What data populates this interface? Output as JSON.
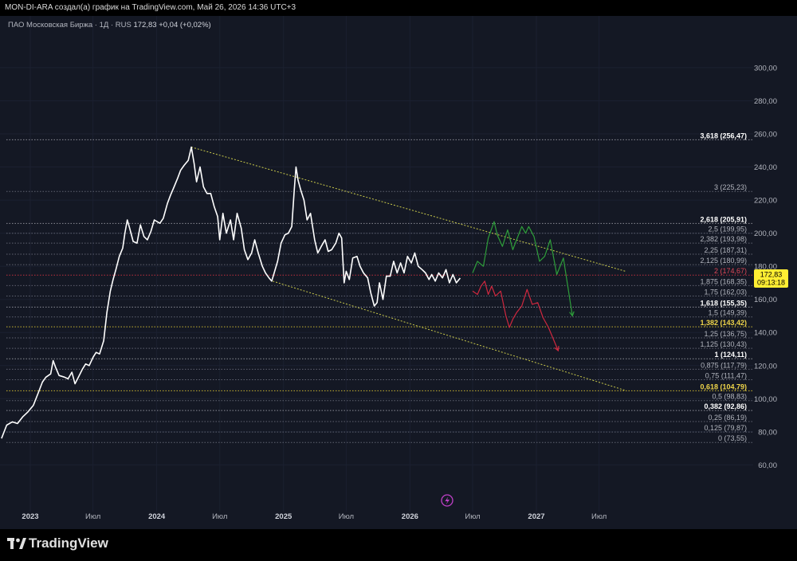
{
  "header": {
    "attribution": "MON-DI-ARA создал(а) график на TradingView.com, Май 26, 2026 14:36 UTC+3",
    "symbol": "ПАО Московская Биржа · 1Д · RUS",
    "last_price": "172,83",
    "change": "+0,04 (+0,02%)"
  },
  "footer": {
    "brand": "TradingView"
  },
  "price_tag": {
    "price": "172,83",
    "countdown": "09:13:18",
    "value": 172.83
  },
  "chart_data": {
    "type": "line",
    "instrument": "ПАО Московская Биржа",
    "interval": "1Д",
    "ylim": [
      52,
      312
    ],
    "y_ticks": [
      {
        "v": 300,
        "label": "300,00"
      },
      {
        "v": 280,
        "label": "280,00"
      },
      {
        "v": 260,
        "label": "260,00"
      },
      {
        "v": 240,
        "label": "240,00"
      },
      {
        "v": 220,
        "label": "220,00"
      },
      {
        "v": 200,
        "label": "200,00"
      },
      {
        "v": 180,
        "label": "180,00"
      },
      {
        "v": 160,
        "label": "160,00"
      },
      {
        "v": 140,
        "label": "140,00"
      },
      {
        "v": 120,
        "label": "120,00"
      },
      {
        "v": 100,
        "label": "100,00"
      },
      {
        "v": 80,
        "label": "80,00"
      },
      {
        "v": 60,
        "label": "60,00"
      }
    ],
    "x_ticks": [
      {
        "t": "2023-01-01",
        "label": "2023",
        "bold": true
      },
      {
        "t": "2023-07-01",
        "label": "Июл",
        "bold": false
      },
      {
        "t": "2024-01-01",
        "label": "2024",
        "bold": true
      },
      {
        "t": "2024-07-01",
        "label": "Июл",
        "bold": false
      },
      {
        "t": "2025-01-01",
        "label": "2025",
        "bold": true
      },
      {
        "t": "2025-07-01",
        "label": "Июл",
        "bold": false
      },
      {
        "t": "2026-01-01",
        "label": "2026",
        "bold": true
      },
      {
        "t": "2026-07-01",
        "label": "Июл",
        "bold": false
      },
      {
        "t": "2027-01-01",
        "label": "2027",
        "bold": true
      },
      {
        "t": "2027-07-01",
        "label": "Июл",
        "bold": false
      }
    ],
    "series": [
      {
        "role": "price",
        "color": "#ffffff",
        "points": [
          [
            "2022-10-10",
            76
          ],
          [
            "2022-10-25",
            84
          ],
          [
            "2022-11-10",
            86
          ],
          [
            "2022-11-25",
            85
          ],
          [
            "2022-12-10",
            89
          ],
          [
            "2022-12-25",
            92
          ],
          [
            "2023-01-10",
            96
          ],
          [
            "2023-01-25",
            104
          ],
          [
            "2023-02-05",
            110
          ],
          [
            "2023-02-15",
            113
          ],
          [
            "2023-03-01",
            115
          ],
          [
            "2023-03-08",
            123
          ],
          [
            "2023-03-15",
            119
          ],
          [
            "2023-03-25",
            114
          ],
          [
            "2023-04-10",
            113
          ],
          [
            "2023-04-20",
            112
          ],
          [
            "2023-05-01",
            116
          ],
          [
            "2023-05-10",
            109
          ],
          [
            "2023-05-20",
            113
          ],
          [
            "2023-06-01",
            118
          ],
          [
            "2023-06-10",
            121
          ],
          [
            "2023-06-20",
            120
          ],
          [
            "2023-07-01",
            125
          ],
          [
            "2023-07-10",
            128
          ],
          [
            "2023-07-20",
            127
          ],
          [
            "2023-08-01",
            135
          ],
          [
            "2023-08-10",
            152
          ],
          [
            "2023-08-20",
            165
          ],
          [
            "2023-08-28",
            172
          ],
          [
            "2023-09-05",
            178
          ],
          [
            "2023-09-15",
            186
          ],
          [
            "2023-09-25",
            191
          ],
          [
            "2023-10-01",
            200
          ],
          [
            "2023-10-08",
            208
          ],
          [
            "2023-10-15",
            203
          ],
          [
            "2023-10-25",
            195
          ],
          [
            "2023-11-05",
            194
          ],
          [
            "2023-11-15",
            205
          ],
          [
            "2023-11-25",
            198
          ],
          [
            "2023-12-05",
            196
          ],
          [
            "2023-12-15",
            201
          ],
          [
            "2023-12-25",
            208
          ],
          [
            "2024-01-10",
            206
          ],
          [
            "2024-01-20",
            209
          ],
          [
            "2024-02-01",
            218
          ],
          [
            "2024-02-10",
            223
          ],
          [
            "2024-02-20",
            228
          ],
          [
            "2024-03-01",
            233
          ],
          [
            "2024-03-10",
            238
          ],
          [
            "2024-03-20",
            241
          ],
          [
            "2024-04-01",
            244
          ],
          [
            "2024-04-10",
            252
          ],
          [
            "2024-04-18",
            242
          ],
          [
            "2024-04-25",
            231
          ],
          [
            "2024-05-05",
            240
          ],
          [
            "2024-05-15",
            228
          ],
          [
            "2024-05-25",
            224
          ],
          [
            "2024-06-05",
            224
          ],
          [
            "2024-06-15",
            216
          ],
          [
            "2024-06-25",
            210
          ],
          [
            "2024-07-01",
            196
          ],
          [
            "2024-07-10",
            212
          ],
          [
            "2024-07-20",
            200
          ],
          [
            "2024-08-01",
            208
          ],
          [
            "2024-08-10",
            196
          ],
          [
            "2024-08-20",
            212
          ],
          [
            "2024-09-01",
            203
          ],
          [
            "2024-09-10",
            190
          ],
          [
            "2024-09-20",
            184
          ],
          [
            "2024-10-01",
            188
          ],
          [
            "2024-10-10",
            196
          ],
          [
            "2024-10-20",
            188
          ],
          [
            "2024-11-01",
            180
          ],
          [
            "2024-11-10",
            176
          ],
          [
            "2024-11-20",
            173
          ],
          [
            "2024-11-28",
            171
          ],
          [
            "2024-12-05",
            176
          ],
          [
            "2024-12-15",
            183
          ],
          [
            "2024-12-25",
            194
          ],
          [
            "2025-01-05",
            199
          ],
          [
            "2025-01-15",
            200
          ],
          [
            "2025-01-25",
            204
          ],
          [
            "2025-02-01",
            226
          ],
          [
            "2025-02-06",
            240
          ],
          [
            "2025-02-12",
            232
          ],
          [
            "2025-02-20",
            226
          ],
          [
            "2025-03-01",
            220
          ],
          [
            "2025-03-10",
            208
          ],
          [
            "2025-03-20",
            212
          ],
          [
            "2025-04-01",
            196
          ],
          [
            "2025-04-10",
            188
          ],
          [
            "2025-04-20",
            192
          ],
          [
            "2025-05-01",
            196
          ],
          [
            "2025-05-10",
            189
          ],
          [
            "2025-05-20",
            190
          ],
          [
            "2025-06-01",
            194
          ],
          [
            "2025-06-10",
            200
          ],
          [
            "2025-06-18",
            197
          ],
          [
            "2025-06-25",
            170
          ],
          [
            "2025-07-01",
            177
          ],
          [
            "2025-07-10",
            172
          ],
          [
            "2025-07-20",
            185
          ],
          [
            "2025-08-01",
            186
          ],
          [
            "2025-08-10",
            180
          ],
          [
            "2025-08-20",
            176
          ],
          [
            "2025-09-01",
            173
          ],
          [
            "2025-09-10",
            164
          ],
          [
            "2025-09-20",
            156
          ],
          [
            "2025-09-28",
            158
          ],
          [
            "2025-10-05",
            170
          ],
          [
            "2025-10-15",
            160
          ],
          [
            "2025-10-25",
            174
          ],
          [
            "2025-11-05",
            174
          ],
          [
            "2025-11-15",
            183
          ],
          [
            "2025-11-25",
            176
          ],
          [
            "2025-12-05",
            182
          ],
          [
            "2025-12-15",
            176
          ],
          [
            "2025-12-25",
            186
          ],
          [
            "2026-01-05",
            182
          ],
          [
            "2026-01-15",
            188
          ],
          [
            "2026-01-25",
            180
          ],
          [
            "2026-02-05",
            178
          ],
          [
            "2026-02-15",
            176
          ],
          [
            "2026-02-25",
            172
          ],
          [
            "2026-03-05",
            175
          ],
          [
            "2026-03-15",
            171
          ],
          [
            "2026-03-25",
            176
          ],
          [
            "2026-04-05",
            173
          ],
          [
            "2026-04-15",
            178
          ],
          [
            "2026-04-25",
            170
          ],
          [
            "2026-05-05",
            175
          ],
          [
            "2026-05-15",
            170
          ],
          [
            "2026-05-26",
            172.83
          ]
        ]
      },
      {
        "role": "bullish-projection",
        "color": "#2e9e3a",
        "points": [
          [
            "2026-07-01",
            176
          ],
          [
            "2026-07-15",
            183
          ],
          [
            "2026-08-01",
            180
          ],
          [
            "2026-08-15",
            197
          ],
          [
            "2026-09-01",
            207
          ],
          [
            "2026-09-10",
            199
          ],
          [
            "2026-09-25",
            192
          ],
          [
            "2026-10-10",
            202
          ],
          [
            "2026-10-25",
            190
          ],
          [
            "2026-11-05",
            196
          ],
          [
            "2026-11-20",
            204
          ],
          [
            "2026-12-01",
            200
          ],
          [
            "2026-12-10",
            204
          ],
          [
            "2026-12-25",
            198
          ],
          [
            "2027-01-10",
            183
          ],
          [
            "2027-01-25",
            186
          ],
          [
            "2027-02-10",
            196
          ],
          [
            "2027-03-01",
            175
          ],
          [
            "2027-03-20",
            185
          ],
          [
            "2027-04-15",
            150
          ]
        ]
      },
      {
        "role": "bearish-projection",
        "color": "#d0283f",
        "points": [
          [
            "2026-07-01",
            165
          ],
          [
            "2026-07-15",
            163
          ],
          [
            "2026-07-25",
            168
          ],
          [
            "2026-08-05",
            171
          ],
          [
            "2026-08-15",
            163
          ],
          [
            "2026-08-25",
            168
          ],
          [
            "2026-09-05",
            162
          ],
          [
            "2026-09-20",
            165
          ],
          [
            "2026-10-05",
            150
          ],
          [
            "2026-10-15",
            143
          ],
          [
            "2026-10-25",
            148
          ],
          [
            "2026-11-05",
            152
          ],
          [
            "2026-11-20",
            156
          ],
          [
            "2026-12-05",
            166
          ],
          [
            "2026-12-20",
            157
          ],
          [
            "2027-01-05",
            158
          ],
          [
            "2027-01-20",
            149
          ],
          [
            "2027-02-05",
            143
          ],
          [
            "2027-03-05",
            129
          ]
        ]
      }
    ],
    "trendlines": [
      {
        "from": [
          "2024-04-10",
          252
        ],
        "to": [
          "2027-09-15",
          177
        ],
        "color": "#c8c84a"
      },
      {
        "from": [
          "2024-12-01",
          171
        ],
        "to": [
          "2027-09-15",
          105
        ],
        "color": "#c8c84a"
      }
    ],
    "fib_levels": [
      {
        "ratio": "3,618",
        "price": "256,47",
        "value": 256.47,
        "color": "#8a8d96",
        "text_color": "#ffffff",
        "bold": true
      },
      {
        "ratio": "3",
        "price": "225,23",
        "value": 225.23,
        "color": "#5f6270",
        "text_color": "#b2b5be",
        "bold": false
      },
      {
        "ratio": "2,618",
        "price": "205,91",
        "value": 205.91,
        "color": "#8a8d96",
        "text_color": "#ffffff",
        "bold": true
      },
      {
        "ratio": "2,5",
        "price": "199,95",
        "value": 199.95,
        "color": "#5f6270",
        "text_color": "#b2b5be",
        "bold": false
      },
      {
        "ratio": "2,382",
        "price": "193,98",
        "value": 193.98,
        "color": "#5f6270",
        "text_color": "#b2b5be",
        "bold": false
      },
      {
        "ratio": "2,25",
        "price": "187,31",
        "value": 187.31,
        "color": "#5f6270",
        "text_color": "#b2b5be",
        "bold": false
      },
      {
        "ratio": "2,125",
        "price": "180,99",
        "value": 180.99,
        "color": "#5f6270",
        "text_color": "#b2b5be",
        "bold": false
      },
      {
        "ratio": "2",
        "price": "174,67",
        "value": 174.67,
        "color": "#c0303f",
        "text_color": "#e04858",
        "bold": false
      },
      {
        "ratio": "1,875",
        "price": "168,35",
        "value": 168.35,
        "color": "#5f6270",
        "text_color": "#b2b5be",
        "bold": false
      },
      {
        "ratio": "1,75",
        "price": "162,03",
        "value": 162.03,
        "color": "#5f6270",
        "text_color": "#b2b5be",
        "bold": false
      },
      {
        "ratio": "1,618",
        "price": "155,35",
        "value": 155.35,
        "color": "#8a8d96",
        "text_color": "#ffffff",
        "bold": true
      },
      {
        "ratio": "1,5",
        "price": "149,39",
        "value": 149.39,
        "color": "#5f6270",
        "text_color": "#b2b5be",
        "bold": false
      },
      {
        "ratio": "1,382",
        "price": "143,42",
        "value": 143.42,
        "color": "#c8b430",
        "text_color": "#f0d64a",
        "bold": true
      },
      {
        "ratio": "1,25",
        "price": "136,75",
        "value": 136.75,
        "color": "#5f6270",
        "text_color": "#b2b5be",
        "bold": false
      },
      {
        "ratio": "1,125",
        "price": "130,43",
        "value": 130.43,
        "color": "#5f6270",
        "text_color": "#b2b5be",
        "bold": false
      },
      {
        "ratio": "1",
        "price": "124,11",
        "value": 124.11,
        "color": "#8a8d96",
        "text_color": "#ffffff",
        "bold": true
      },
      {
        "ratio": "0,875",
        "price": "117,79",
        "value": 117.79,
        "color": "#5f6270",
        "text_color": "#b2b5be",
        "bold": false
      },
      {
        "ratio": "0,75",
        "price": "111,47",
        "value": 111.47,
        "color": "#5f6270",
        "text_color": "#b2b5be",
        "bold": false
      },
      {
        "ratio": "0,618",
        "price": "104,79",
        "value": 104.79,
        "color": "#c8b430",
        "text_color": "#f0d64a",
        "bold": true
      },
      {
        "ratio": "0,5",
        "price": "98,83",
        "value": 98.83,
        "color": "#5f6270",
        "text_color": "#b2b5be",
        "bold": false
      },
      {
        "ratio": "0,382",
        "price": "92,86",
        "value": 92.86,
        "color": "#8a8d96",
        "text_color": "#ffffff",
        "bold": true
      },
      {
        "ratio": "0,25",
        "price": "86,19",
        "value": 86.19,
        "color": "#5f6270",
        "text_color": "#b2b5be",
        "bold": false
      },
      {
        "ratio": "0,125",
        "price": "79,87",
        "value": 79.87,
        "color": "#5f6270",
        "text_color": "#b2b5be",
        "bold": false
      },
      {
        "ratio": "0",
        "price": "73,55",
        "value": 73.55,
        "color": "#5f6270",
        "text_color": "#b2b5be",
        "bold": false
      }
    ]
  }
}
